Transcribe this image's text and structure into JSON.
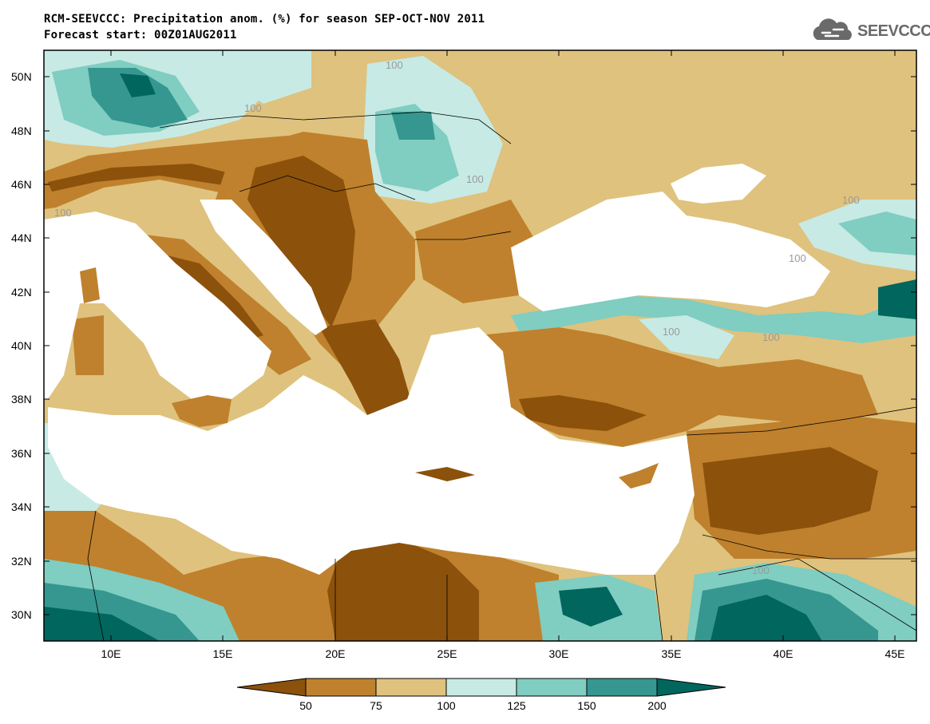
{
  "header": {
    "title_line1": "RCM-SEEVCCC: Precipitation anom. (%) for season SEP-OCT-NOV 2011",
    "title_line2": "Forecast start: 00Z01AUG2011",
    "logo_text": "SEEVCCC"
  },
  "axes": {
    "lat_labels": [
      "50N",
      "48N",
      "46N",
      "44N",
      "42N",
      "40N",
      "38N",
      "36N",
      "34N",
      "32N",
      "30N"
    ],
    "lon_labels": [
      "10E",
      "15E",
      "20E",
      "25E",
      "30E",
      "35E",
      "40E",
      "45E"
    ]
  },
  "contour_labels": [
    "100",
    "100",
    "100",
    "100",
    "100",
    "100",
    "100",
    "100",
    "100"
  ],
  "legend": {
    "values": [
      "50",
      "75",
      "100",
      "125",
      "150",
      "200"
    ],
    "colors": [
      "#8c510a",
      "#bf812d",
      "#dfc27d",
      "#c7eae5",
      "#80cdc1",
      "#35978f",
      "#01665e"
    ]
  },
  "colors": {
    "land_low": "#8c510a",
    "land_mid": "#bf812d",
    "land_neutral": "#dfc27d",
    "wet_light": "#c7eae5",
    "wet_mid": "#80cdc1",
    "wet_high": "#35978f",
    "wet_max": "#01665e",
    "sea": "#ffffff"
  }
}
